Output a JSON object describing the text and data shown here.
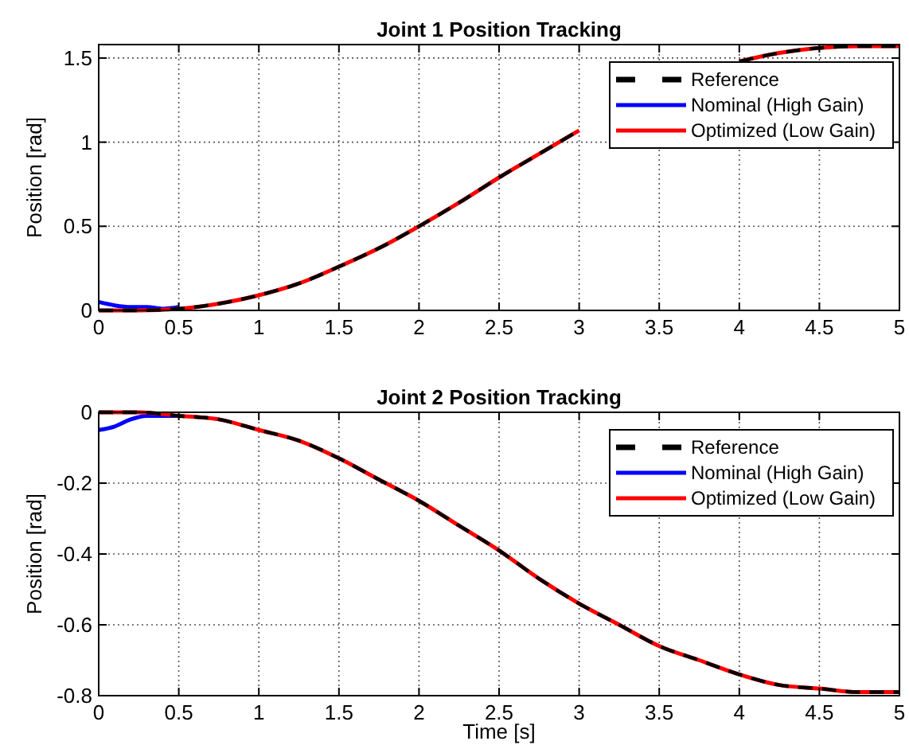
{
  "chart_data": [
    {
      "type": "line",
      "title": "Joint 1 Position Tracking",
      "ylabel": "Position [rad]",
      "xlim": [
        0,
        5
      ],
      "ylim": [
        0,
        1.58
      ],
      "xticks": [
        0,
        0.5,
        1,
        1.5,
        2,
        2.5,
        3,
        3.5,
        4,
        4.5,
        5
      ],
      "yticks": [
        0,
        0.5,
        1,
        1.5
      ],
      "grid": true,
      "legend": "top right",
      "series": [
        {
          "name": "Reference",
          "color": "#000000",
          "line_style": "dashed",
          "x": [
            0,
            0.25,
            0.5,
            0.75,
            1,
            1.25,
            1.5,
            1.75,
            2,
            2.25,
            2.5,
            2.75,
            3,
            3.25,
            3.5,
            3.75,
            4,
            4.25,
            4.5,
            4.75,
            5
          ],
          "values": [
            0,
            0,
            0.01,
            0.04,
            0.09,
            0.16,
            0.26,
            0.37,
            0.5,
            0.64,
            0.79,
            0.93,
            1.07,
            null,
            null,
            null,
            1.48,
            1.53,
            1.56,
            1.57,
            1.57
          ]
        },
        {
          "name": "Nominal (High Gain)",
          "color": "#0000ff",
          "line_style": "solid",
          "x": [
            0,
            0.1,
            0.2,
            0.3,
            0.4,
            0.5
          ],
          "values": [
            0.05,
            0.03,
            0.02,
            0.02,
            0.01,
            0.02
          ]
        },
        {
          "name": "Optimized (Low Gain)",
          "color": "#ff0000",
          "line_style": "solid",
          "x": [
            0,
            0.25,
            0.5,
            0.75,
            1,
            1.25,
            1.5,
            1.75,
            2,
            2.25,
            2.5,
            2.75,
            3,
            3.25,
            3.5,
            3.75,
            4,
            4.25,
            4.5,
            4.75,
            5
          ],
          "values": [
            0,
            0,
            0.01,
            0.04,
            0.09,
            0.16,
            0.26,
            0.37,
            0.5,
            0.64,
            0.79,
            0.93,
            1.07,
            null,
            null,
            null,
            1.48,
            1.53,
            1.56,
            1.57,
            1.57
          ]
        }
      ]
    },
    {
      "type": "line",
      "title": "Joint 2 Position Tracking",
      "xlabel": "Time [s]",
      "ylabel": "Position [rad]",
      "xlim": [
        0,
        5
      ],
      "ylim": [
        -0.8,
        0
      ],
      "xticks": [
        0,
        0.5,
        1,
        1.5,
        2,
        2.5,
        3,
        3.5,
        4,
        4.5,
        5
      ],
      "yticks": [
        -0.8,
        -0.6,
        -0.4,
        -0.2,
        0
      ],
      "grid": true,
      "legend": "top right",
      "series": [
        {
          "name": "Reference",
          "color": "#000000",
          "line_style": "dashed",
          "x": [
            0,
            0.25,
            0.5,
            0.75,
            1,
            1.25,
            1.5,
            1.75,
            2,
            2.25,
            2.5,
            2.75,
            3,
            3.25,
            3.5,
            3.75,
            4,
            4.25,
            4.5,
            4.75,
            5
          ],
          "values": [
            0,
            0,
            -0.01,
            -0.02,
            -0.05,
            -0.08,
            -0.13,
            -0.19,
            -0.25,
            -0.32,
            -0.39,
            -0.47,
            -0.54,
            -0.6,
            -0.66,
            -0.7,
            -0.74,
            -0.77,
            -0.78,
            -0.79,
            -0.79
          ]
        },
        {
          "name": "Nominal (High Gain)",
          "color": "#0000ff",
          "line_style": "solid",
          "x": [
            0,
            0.1,
            0.2,
            0.3,
            0.4,
            0.5
          ],
          "values": [
            -0.05,
            -0.04,
            -0.02,
            -0.01,
            -0.01,
            -0.01
          ]
        },
        {
          "name": "Optimized (Low Gain)",
          "color": "#ff0000",
          "line_style": "solid",
          "x": [
            0,
            0.25,
            0.5,
            0.75,
            1,
            1.25,
            1.5,
            1.75,
            2,
            2.25,
            2.5,
            2.75,
            3,
            3.25,
            3.5,
            3.75,
            4,
            4.25,
            4.5,
            4.75,
            5
          ],
          "values": [
            0,
            0,
            -0.01,
            -0.02,
            -0.05,
            -0.08,
            -0.13,
            -0.19,
            -0.25,
            -0.32,
            -0.39,
            -0.47,
            -0.54,
            -0.6,
            -0.66,
            -0.7,
            -0.74,
            -0.77,
            -0.78,
            -0.79,
            -0.79
          ]
        }
      ]
    }
  ]
}
